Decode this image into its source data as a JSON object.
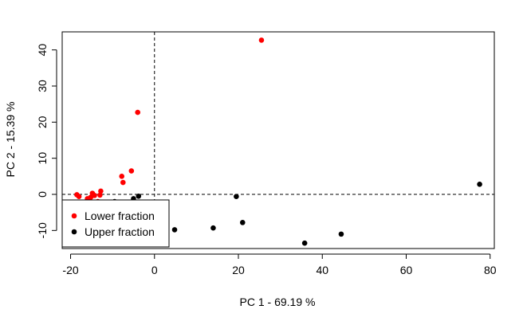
{
  "chart_data": {
    "type": "scatter",
    "xlabel": "PC 1 - 69.19 %",
    "ylabel": "PC 2 - 15.39 %",
    "xlim": [
      -22,
      81
    ],
    "ylim": [
      -15,
      45
    ],
    "x_ticks": [
      -20,
      0,
      20,
      40,
      60,
      80
    ],
    "y_ticks": [
      -10,
      0,
      10,
      20,
      30,
      40
    ],
    "reference_lines": {
      "x": 0,
      "y": 0,
      "style": "dashed"
    },
    "legend_position": "bottom-left",
    "series": [
      {
        "name": "Lower fraction",
        "color": "#ff0000",
        "points": [
          [
            -18.5,
            -0.1
          ],
          [
            -18.0,
            -0.6
          ],
          [
            -16.0,
            -1.2
          ],
          [
            -15.2,
            -0.8
          ],
          [
            -14.8,
            0.3
          ],
          [
            -14.3,
            -0.3
          ],
          [
            -13.5,
            -2.0
          ],
          [
            -13.0,
            -0.2
          ],
          [
            -12.8,
            0.9
          ],
          [
            -7.8,
            5.0
          ],
          [
            -7.5,
            3.3
          ],
          [
            -5.5,
            6.5
          ],
          [
            -4.0,
            22.7
          ],
          [
            25.5,
            42.7
          ]
        ]
      },
      {
        "name": "Upper fraction",
        "color": "#000000",
        "points": [
          [
            -9.5,
            -2.0
          ],
          [
            -5.0,
            -1.2
          ],
          [
            -3.8,
            -0.5
          ],
          [
            4.8,
            -9.8
          ],
          [
            14.0,
            -9.3
          ],
          [
            19.5,
            -0.6
          ],
          [
            21.0,
            -7.8
          ],
          [
            35.8,
            -13.5
          ],
          [
            44.5,
            -11.0
          ],
          [
            77.5,
            2.8
          ]
        ]
      }
    ]
  }
}
